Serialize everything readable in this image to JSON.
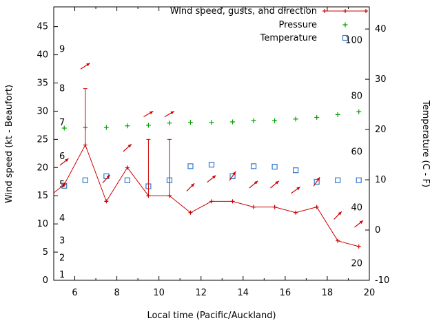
{
  "chart_data": {
    "type": "line",
    "title": "",
    "xlabel": "Local time (Pacific/Auckland)",
    "ylabel_left": "Wind speed (kt - Beaufort)",
    "ylabel_right": "Temperature (C - F)",
    "x_range": [
      5,
      20
    ],
    "x_major_ticks": [
      6,
      8,
      10,
      12,
      14,
      16,
      18,
      20
    ],
    "x_minor_step": 1,
    "y_left_range": [
      0,
      48.5
    ],
    "y_left_ticks": [
      0,
      5,
      10,
      15,
      20,
      25,
      30,
      35,
      40,
      45
    ],
    "y_right_range": [
      -10,
      44.4
    ],
    "y_right_ticks": [
      -10,
      0,
      10,
      20,
      30,
      40
    ],
    "beaufort_scale_labels": [
      {
        "label": "1",
        "kt": 1
      },
      {
        "label": "2",
        "kt": 4
      },
      {
        "label": "3",
        "kt": 7
      },
      {
        "label": "4",
        "kt": 11
      },
      {
        "label": "5",
        "kt": 17
      },
      {
        "label": "6",
        "kt": 22
      },
      {
        "label": "7",
        "kt": 28
      },
      {
        "label": "8",
        "kt": 34
      },
      {
        "label": "9",
        "kt": 41
      }
    ],
    "fahrenheit_scale_labels": [
      {
        "label": "20",
        "f": 20
      },
      {
        "label": "40",
        "f": 40
      },
      {
        "label": "60",
        "f": 60
      },
      {
        "label": "80",
        "f": 80
      },
      {
        "label": "100",
        "f": 100
      }
    ],
    "legend": [
      {
        "label": "Wind speed, gusts, and direction",
        "color": "#cc0000",
        "marker": "line-plus-arrow"
      },
      {
        "label": "Pressure",
        "color": "#00a000",
        "marker": "plus"
      },
      {
        "label": "Temperature",
        "color": "#3377cc",
        "marker": "open-square"
      }
    ],
    "colors": {
      "wind": "#cc0000",
      "pressure": "#00a000",
      "temperature": "#3377cc",
      "axis": "#000000",
      "background": "#ffffff"
    },
    "series": {
      "wind": {
        "axis": "left",
        "units": "kt",
        "x": [
          5.0,
          5.5,
          6.5,
          7.5,
          8.5,
          9.5,
          10.5,
          11.5,
          12.5,
          13.5,
          14.5,
          15.5,
          16.5,
          17.5,
          18.5,
          19.5
        ],
        "speed_kt": [
          15.5,
          17,
          24,
          14,
          20,
          15,
          15,
          12,
          14,
          14,
          13,
          13,
          12,
          13,
          7,
          6
        ],
        "gust_kt": [
          null,
          null,
          34,
          null,
          null,
          25,
          25,
          null,
          null,
          null,
          null,
          null,
          null,
          null,
          null,
          null
        ],
        "direction_arrows": [
          {
            "x": 5.5,
            "y_kt": 21,
            "angle_deg": 38
          },
          {
            "x": 6.5,
            "y_kt": 38,
            "angle_deg": 33
          },
          {
            "x": 7.5,
            "y_kt": 18,
            "angle_deg": 48
          },
          {
            "x": 8.5,
            "y_kt": 23.5,
            "angle_deg": 42
          },
          {
            "x": 9.5,
            "y_kt": 29.5,
            "angle_deg": 30
          },
          {
            "x": 10.5,
            "y_kt": 29.5,
            "angle_deg": 30
          },
          {
            "x": 11.5,
            "y_kt": 16.5,
            "angle_deg": 45
          },
          {
            "x": 12.5,
            "y_kt": 18,
            "angle_deg": 38
          },
          {
            "x": 13.5,
            "y_kt": 18.5,
            "angle_deg": 55
          },
          {
            "x": 14.5,
            "y_kt": 17,
            "angle_deg": 40
          },
          {
            "x": 15.5,
            "y_kt": 17,
            "angle_deg": 40
          },
          {
            "x": 16.5,
            "y_kt": 16,
            "angle_deg": 35
          },
          {
            "x": 17.5,
            "y_kt": 17.5,
            "angle_deg": 55
          },
          {
            "x": 18.5,
            "y_kt": 11.5,
            "angle_deg": 45
          },
          {
            "x": 19.5,
            "y_kt": 10,
            "angle_deg": 38
          }
        ]
      },
      "pressure": {
        "axis": "left",
        "units": "plotted on left kt-axis positions (no pressure scale printed)",
        "x": [
          5.5,
          6.5,
          7.5,
          8.5,
          9.5,
          10.5,
          11.5,
          12.5,
          13.5,
          14.5,
          15.5,
          16.5,
          17.5,
          18.5,
          19.5
        ],
        "values_kt_axis": [
          27.0,
          27.1,
          27.1,
          27.4,
          27.5,
          27.9,
          28.0,
          28.0,
          28.1,
          28.3,
          28.3,
          28.6,
          28.9,
          29.4,
          29.9
        ]
      },
      "temperature": {
        "axis": "right",
        "units": "C",
        "x": [
          5.5,
          6.5,
          7.5,
          8.5,
          9.5,
          10.5,
          11.5,
          12.5,
          13.5,
          14.5,
          15.5,
          16.5,
          17.5,
          18.5,
          19.5
        ],
        "values_c": [
          8.8,
          9.9,
          10.7,
          9.9,
          8.7,
          9.9,
          12.7,
          13.0,
          10.7,
          12.7,
          12.6,
          11.9,
          9.6,
          9.9,
          9.9
        ]
      }
    }
  }
}
